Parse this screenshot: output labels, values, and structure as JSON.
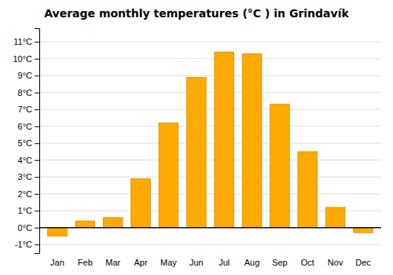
{
  "chart_data": {
    "type": "bar",
    "title": "Average monthly temperatures (°C ) in Grindavík",
    "categories": [
      "Jan",
      "Feb",
      "Mar",
      "Apr",
      "May",
      "Jun",
      "Jul",
      "Aug",
      "Sep",
      "Oct",
      "Nov",
      "Dec"
    ],
    "values": [
      -0.5,
      0.4,
      0.6,
      2.9,
      6.2,
      8.9,
      10.4,
      10.3,
      7.3,
      4.5,
      1.2,
      -0.3
    ],
    "color": "#FFAA00",
    "ylim": [
      -1.5,
      11.8
    ],
    "yticks": [
      {
        "value": -1,
        "label": "-1°C"
      },
      {
        "value": 0,
        "label": "0°C"
      },
      {
        "value": 1,
        "label": "1°C"
      },
      {
        "value": 2,
        "label": "2°C"
      },
      {
        "value": 3,
        "label": "3°C"
      },
      {
        "value": 4,
        "label": "4°C"
      },
      {
        "value": 5,
        "label": "5°C"
      },
      {
        "value": 6,
        "label": "6°C"
      },
      {
        "value": 7,
        "label": "7°C"
      },
      {
        "value": 8,
        "label": "8°C"
      },
      {
        "value": 9,
        "label": "9°C"
      },
      {
        "value": 10,
        "label": "10°C"
      },
      {
        "value": 11,
        "label": "11°C"
      }
    ],
    "grid": true
  }
}
